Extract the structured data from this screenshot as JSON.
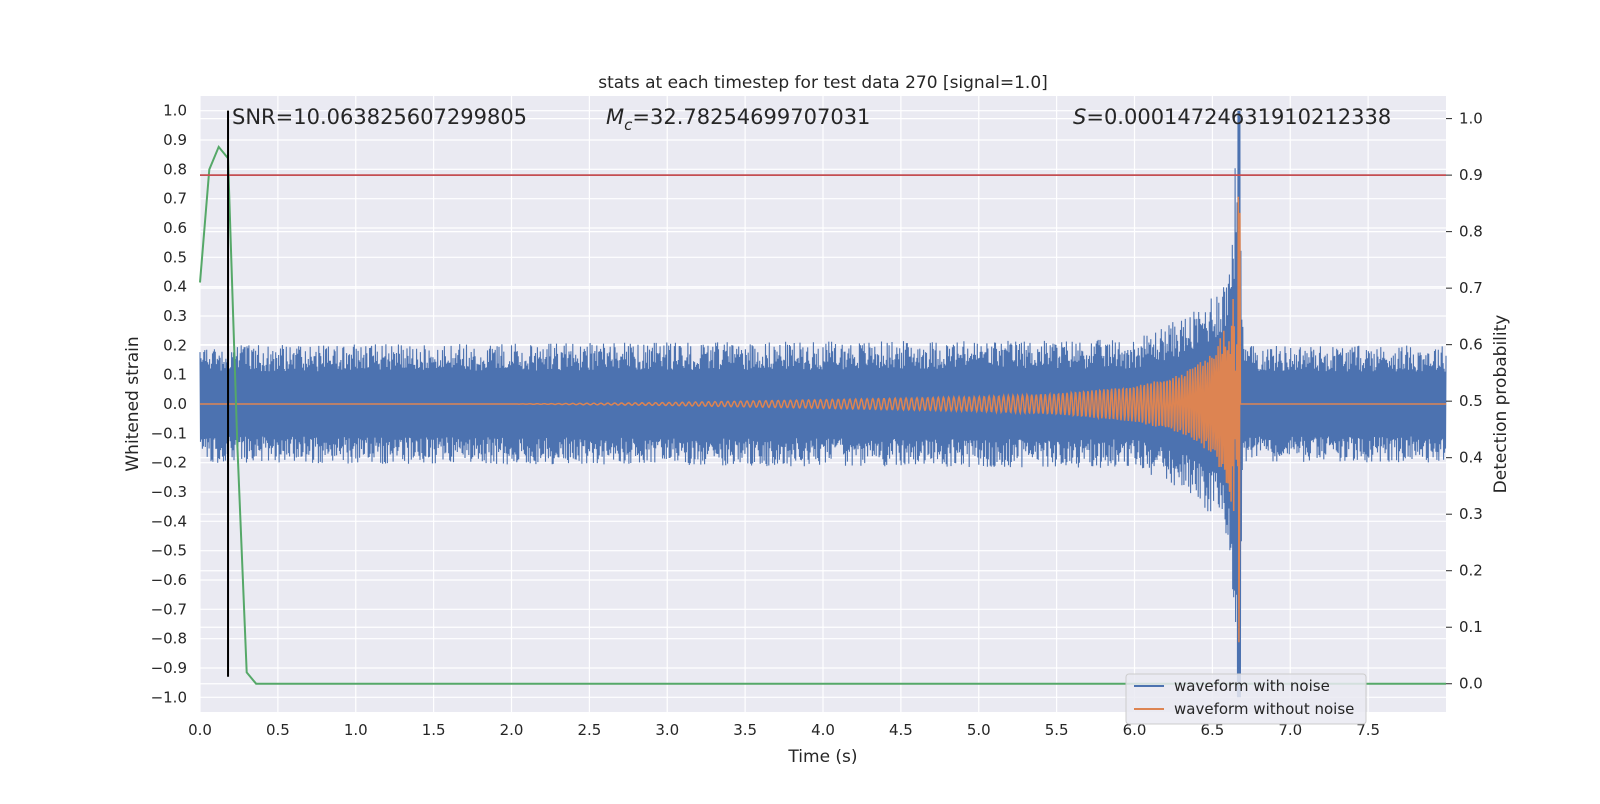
{
  "chart_data": {
    "type": "line",
    "title": "stats at each timestep for test data 270 [signal=1.0]",
    "xlabel": "Time (s)",
    "ylabel": "Whitened strain",
    "ylabel_right": "Detection probability",
    "xlim": [
      0.0,
      8.0
    ],
    "ylim": [
      -1.05,
      1.05
    ],
    "ylim_right": [
      -0.05,
      1.04
    ],
    "x_ticks": [
      "0.0",
      "0.5",
      "1.0",
      "1.5",
      "2.0",
      "2.5",
      "3.0",
      "3.5",
      "4.0",
      "4.5",
      "5.0",
      "5.5",
      "6.0",
      "6.5",
      "7.0",
      "7.5"
    ],
    "y_ticks": [
      "1.0",
      "0.9",
      "0.8",
      "0.7",
      "0.6",
      "0.5",
      "0.4",
      "0.3",
      "0.2",
      "0.1",
      "0.0",
      "−0.1",
      "−0.2",
      "−0.3",
      "−0.4",
      "−0.5",
      "−0.6",
      "−0.7",
      "−0.8",
      "−0.9",
      "−1.0"
    ],
    "y_ticks_right": [
      "1.0",
      "0.9",
      "0.8",
      "0.7",
      "0.6",
      "0.5",
      "0.4",
      "0.3",
      "0.2",
      "0.1",
      "0.0"
    ],
    "grid": true,
    "legend_position": "lower right",
    "annotations": {
      "snr": "SNR=10.063825607299805",
      "mc_symbol": "M",
      "mc_sub": "c",
      "mc_value": "=32.78254699707031",
      "s_symbol": "S",
      "s_value": "=0.00014724631910212338"
    },
    "series": [
      {
        "name": "waveform with noise",
        "color": "#4c72b0",
        "noise_envelope": 0.2,
        "description_values": {
          "x": [
            0.0,
            6.0,
            6.4,
            6.6,
            6.67,
            6.7,
            8.0
          ],
          "amplitude": [
            0.2,
            0.22,
            0.32,
            0.45,
            1.0,
            0.2,
            0.2
          ]
        }
      },
      {
        "name": "waveform without noise",
        "color": "#dd8452",
        "x": [
          0.0,
          2.0,
          3.0,
          4.0,
          5.0,
          5.5,
          6.0,
          6.3,
          6.5,
          6.6,
          6.65,
          6.67,
          6.7,
          8.0
        ],
        "amplitude": [
          0.0,
          0.0,
          0.005,
          0.015,
          0.025,
          0.035,
          0.06,
          0.1,
          0.17,
          0.28,
          0.42,
          0.93,
          0.0,
          0.0
        ]
      },
      {
        "name": "detection probability",
        "color": "#55a868",
        "axis": "right",
        "x": [
          0.0,
          0.06,
          0.12,
          0.18,
          0.24,
          0.3,
          0.36,
          8.0
        ],
        "values": [
          0.71,
          0.91,
          0.95,
          0.93,
          0.42,
          0.02,
          0.0,
          0.0
        ]
      }
    ],
    "hlines": [
      {
        "axis": "right",
        "y": 0.9,
        "color": "#c44e52"
      }
    ],
    "vlines": [
      {
        "x": 0.18,
        "y_from": -0.93,
        "y_to": 1.0,
        "color": "#000000"
      }
    ]
  }
}
